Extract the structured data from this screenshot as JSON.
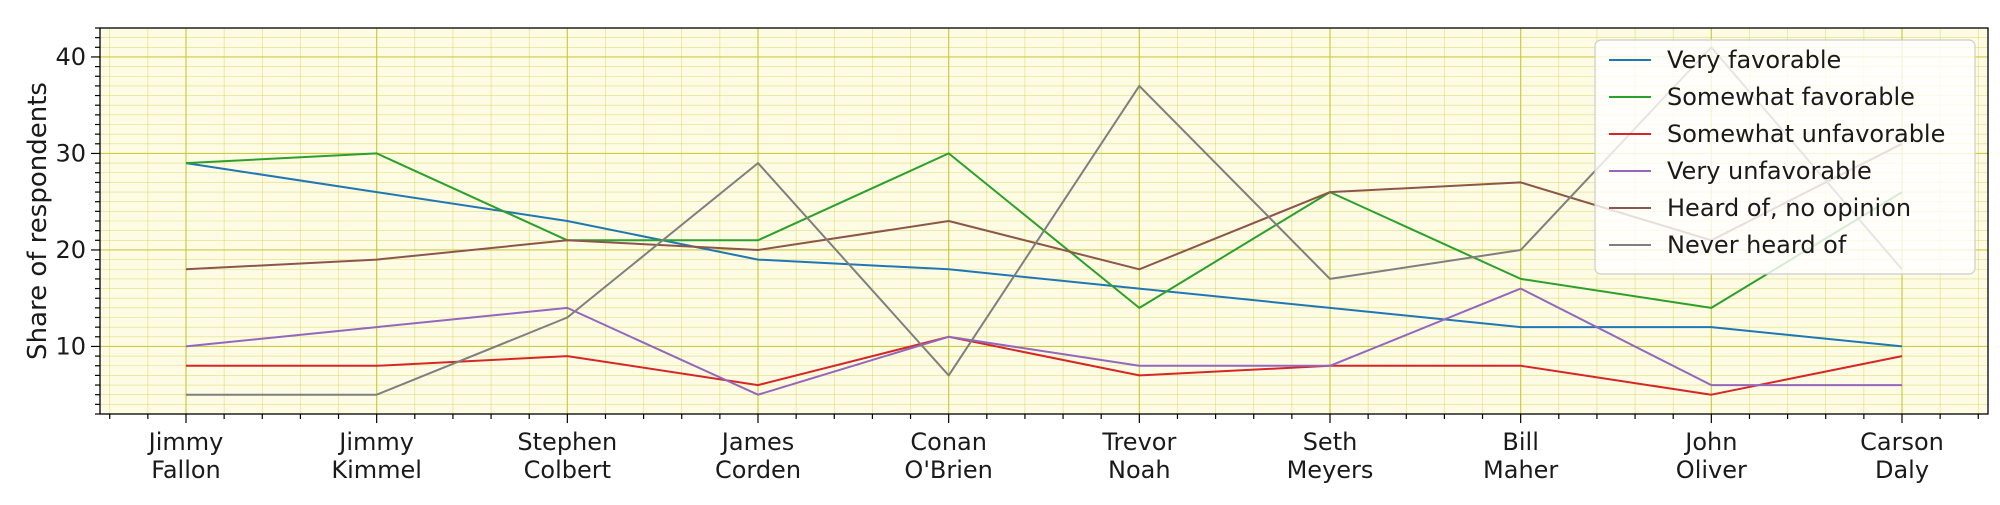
{
  "chart_data": {
    "type": "line",
    "title": "",
    "xlabel": "",
    "ylabel": "Share of respondents",
    "categories": [
      [
        "Jimmy",
        "Fallon"
      ],
      [
        "Jimmy",
        "Kimmel"
      ],
      [
        "Stephen",
        "Colbert"
      ],
      [
        "James",
        "Corden"
      ],
      [
        "Conan",
        "O'Brien"
      ],
      [
        "Trevor",
        "Noah"
      ],
      [
        "Seth",
        "Meyers"
      ],
      [
        "Bill",
        "Maher"
      ],
      [
        "John",
        "Oliver"
      ],
      [
        "Carson",
        "Daly"
      ]
    ],
    "yticks": [
      10,
      20,
      30,
      40
    ],
    "ylim": [
      3,
      43
    ],
    "grid": true,
    "minor_grid": true,
    "grid_color": "#c8c832",
    "plot_background": "#fdfbe3",
    "legend_position": "top-right",
    "series": [
      {
        "name": "Very favorable",
        "color": "#1f77b4",
        "values": [
          29,
          26,
          23,
          19,
          18,
          16,
          14,
          12,
          12,
          10
        ]
      },
      {
        "name": "Somewhat favorable",
        "color": "#2ca02c",
        "values": [
          29,
          30,
          21,
          21,
          30,
          14,
          26,
          17,
          14,
          26
        ]
      },
      {
        "name": "Somewhat unfavorable",
        "color": "#d62728",
        "values": [
          8,
          8,
          9,
          6,
          11,
          7,
          8,
          8,
          5,
          9
        ]
      },
      {
        "name": "Very unfavorable",
        "color": "#9467bd",
        "values": [
          10,
          12,
          14,
          5,
          11,
          8,
          8,
          16,
          6,
          6
        ]
      },
      {
        "name": "Heard of, no opinion",
        "color": "#8c564b",
        "values": [
          18,
          19,
          21,
          20,
          23,
          18,
          26,
          27,
          21,
          31
        ]
      },
      {
        "name": "Never heard of",
        "color": "#7f7f7f",
        "values": [
          5,
          5,
          13,
          29,
          7,
          37,
          17,
          20,
          41,
          18
        ]
      }
    ]
  }
}
